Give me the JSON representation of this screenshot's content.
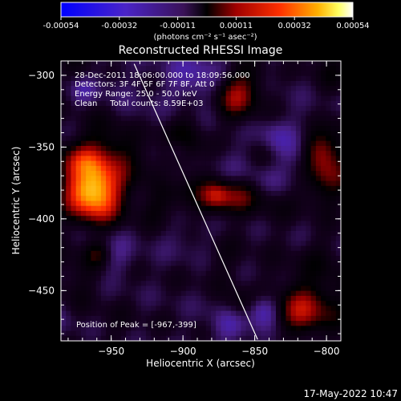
{
  "colorbar": {
    "tick_labels": [
      "-0.00054",
      "-0.00032",
      "-0.00011",
      "0.00011",
      "0.00032",
      "0.00054"
    ],
    "range": [
      -0.00054,
      0.00054
    ],
    "units_label": "(photons cm⁻² s⁻¹ asec⁻²)"
  },
  "chart_data": {
    "type": "heatmap",
    "title": "Reconstructed RHESSI Image",
    "xlabel": "Heliocentric X (arcsec)",
    "ylabel": "Heliocentric Y (arcsec)",
    "xlim": [
      -985,
      -790
    ],
    "ylim": [
      -485,
      -290
    ],
    "x_ticks": [
      -950,
      -900,
      -850,
      -800
    ],
    "y_ticks": [
      -300,
      -350,
      -400,
      -450
    ],
    "x_tick_labels": [
      "−950",
      "−900",
      "−850",
      "−800"
    ],
    "y_tick_labels": [
      "−300",
      "−350",
      "−400",
      "−450"
    ],
    "info_lines": [
      "28-Dec-2011 18:06:00.000 to 18:09:56.000",
      "Detectors: 3F 4F 5F 6F 7F 8F, Att 0",
      "Energy Range: 25.0 - 50.0 keV",
      "Clean     Total counts: 8.59E+03"
    ],
    "peak_label": "Position of Peak = [-967,-399]",
    "peak": [
      -967,
      -399
    ],
    "limb_line": [
      [
        -934,
        -292
      ],
      [
        -848,
        -484
      ]
    ],
    "grid": false,
    "colormap": "blue-purple-black-red-yellow-white"
  },
  "footer": {
    "date": "17-May-2022 10:47"
  }
}
